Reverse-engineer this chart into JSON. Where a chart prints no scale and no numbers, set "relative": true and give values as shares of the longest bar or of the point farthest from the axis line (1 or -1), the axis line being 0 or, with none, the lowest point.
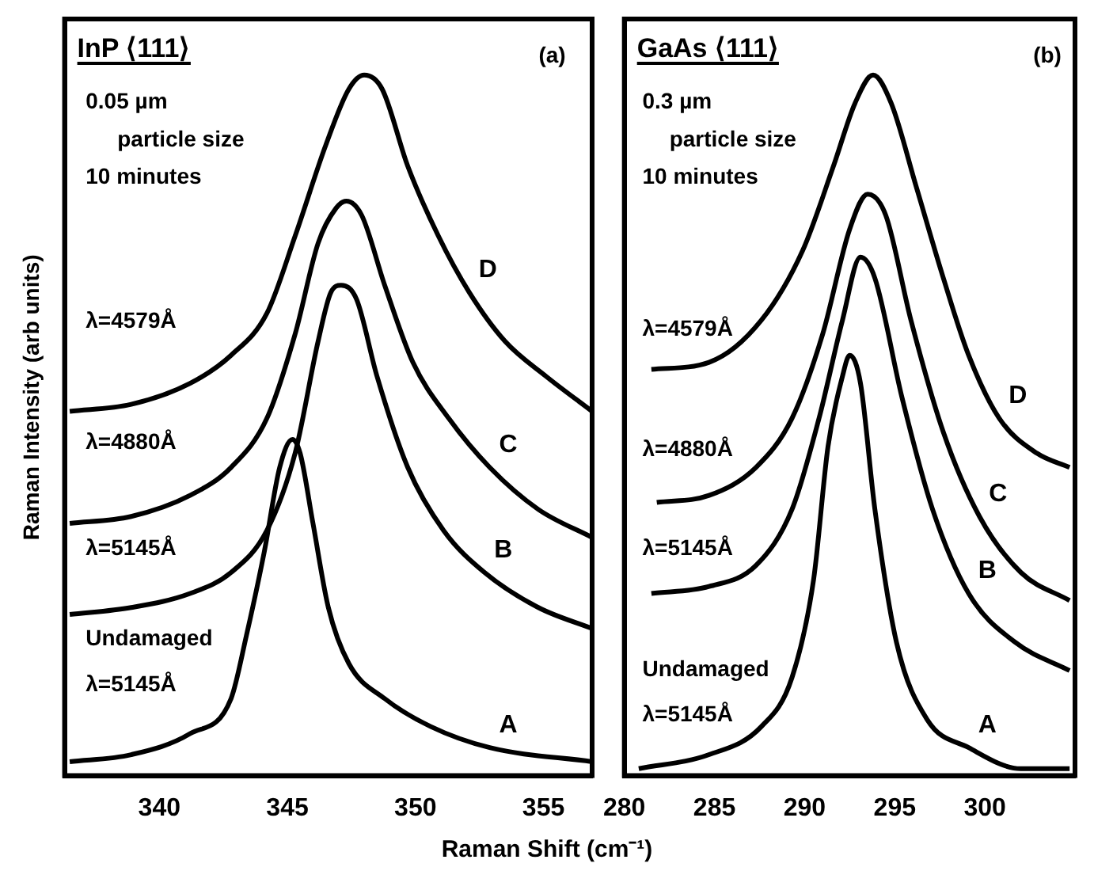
{
  "chart_data": [
    {
      "type": "line",
      "title": "InP ⟨111⟩",
      "xlabel": "Raman Shift (cm⁻¹)",
      "ylabel": "Raman Intensity (arb units)",
      "relative": true,
      "xlim": [
        336.3,
        356.9
      ],
      "xticks": [
        340,
        345,
        350,
        355
      ],
      "annotations": [
        "(a)",
        "0.05 µm",
        "particle size",
        "10 minutes",
        "λ=4579Å",
        "λ=4880Å",
        "λ=5145Å",
        "Undamaged",
        "λ=5145Å"
      ],
      "series": [
        {
          "name": "D",
          "color": "#000000",
          "x": [
            336.5,
            338.9,
            341.2,
            342.8,
            344.2,
            345.3,
            346.5,
            347.4,
            348.0,
            348.7,
            349.7,
            350.9,
            352.1,
            353.5,
            355.1,
            356.9
          ],
          "values": [
            0.52,
            0.53,
            0.56,
            0.6,
            0.66,
            0.77,
            0.9,
            0.98,
            1.0,
            0.98,
            0.87,
            0.77,
            0.69,
            0.62,
            0.57,
            0.52
          ]
        },
        {
          "name": "C",
          "color": "#000000",
          "x": [
            336.5,
            338.9,
            341.2,
            342.8,
            344.2,
            345.3,
            346.2,
            346.9,
            347.3,
            347.9,
            348.8,
            349.9,
            351.3,
            352.9,
            354.8,
            356.9
          ],
          "values": [
            0.36,
            0.37,
            0.4,
            0.44,
            0.51,
            0.63,
            0.76,
            0.81,
            0.82,
            0.8,
            0.7,
            0.59,
            0.51,
            0.44,
            0.38,
            0.34
          ]
        },
        {
          "name": "B",
          "color": "#000000",
          "x": [
            336.5,
            338.9,
            341.2,
            342.8,
            344.2,
            345.3,
            346.2,
            346.7,
            347.1,
            347.7,
            348.5,
            349.7,
            351.1,
            352.7,
            354.8,
            356.9
          ],
          "values": [
            0.23,
            0.24,
            0.26,
            0.29,
            0.35,
            0.46,
            0.62,
            0.69,
            0.7,
            0.68,
            0.57,
            0.44,
            0.35,
            0.29,
            0.24,
            0.21
          ]
        },
        {
          "name": "A",
          "color": "#000000",
          "x": [
            336.5,
            338.9,
            341.2,
            342.8,
            343.4,
            344.1,
            344.7,
            345.2,
            345.5,
            346.0,
            346.6,
            347.4,
            348.8,
            350.6,
            352.9,
            356.9
          ],
          "values": [
            0.02,
            0.03,
            0.06,
            0.11,
            0.2,
            0.32,
            0.44,
            0.48,
            0.46,
            0.36,
            0.24,
            0.16,
            0.11,
            0.07,
            0.04,
            0.02
          ]
        }
      ]
    },
    {
      "type": "line",
      "title": "GaAs ⟨111⟩",
      "relative": true,
      "xlim": [
        280,
        305
      ],
      "xticks": [
        280,
        285,
        290,
        295,
        300
      ],
      "annotations": [
        "(b)",
        "0.3 µm",
        "particle size",
        "10 minutes",
        "λ=4579Å",
        "λ=4880Å",
        "λ=5145Å",
        "Undamaged",
        "λ=5145Å"
      ],
      "series": [
        {
          "name": "D",
          "color": "#000000",
          "x": [
            281.5,
            284.7,
            287.6,
            289.9,
            291.6,
            292.8,
            293.8,
            294.8,
            296.2,
            297.7,
            299.1,
            300.8,
            302.9,
            304.7
          ],
          "values": [
            0.58,
            0.59,
            0.65,
            0.75,
            0.87,
            0.96,
            1.0,
            0.96,
            0.84,
            0.71,
            0.6,
            0.51,
            0.46,
            0.44
          ]
        },
        {
          "name": "C",
          "color": "#000000",
          "x": [
            281.8,
            284.7,
            287.3,
            289.3,
            291.0,
            292.5,
            293.5,
            294.5,
            295.9,
            297.7,
            299.7,
            302.0,
            304.7
          ],
          "values": [
            0.39,
            0.4,
            0.44,
            0.51,
            0.63,
            0.78,
            0.83,
            0.8,
            0.65,
            0.49,
            0.37,
            0.29,
            0.25
          ]
        },
        {
          "name": "B",
          "color": "#000000",
          "x": [
            281.5,
            284.7,
            287.3,
            289.3,
            290.8,
            292.1,
            293.1,
            293.9,
            295.4,
            297.1,
            299.1,
            301.7,
            304.7
          ],
          "values": [
            0.26,
            0.27,
            0.3,
            0.38,
            0.51,
            0.65,
            0.74,
            0.71,
            0.54,
            0.38,
            0.26,
            0.19,
            0.15
          ]
        },
        {
          "name": "A",
          "color": "#000000",
          "x": [
            280.8,
            284.7,
            287.6,
            289.3,
            290.5,
            291.3,
            292.1,
            292.5,
            293.1,
            293.9,
            295.1,
            296.8,
            299.1,
            302.0,
            304.7
          ],
          "values": [
            0.01,
            0.03,
            0.07,
            0.14,
            0.28,
            0.47,
            0.57,
            0.6,
            0.56,
            0.38,
            0.19,
            0.08,
            0.04,
            0.01,
            0.01
          ]
        }
      ]
    }
  ]
}
